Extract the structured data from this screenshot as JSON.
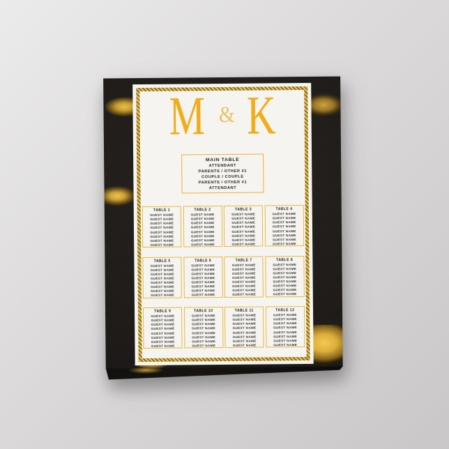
{
  "colors": {
    "bg1": "#ecebeb",
    "bg2": "#c9c7c8",
    "paper": "#f8f7f3",
    "canvas-black": "#1e1b19",
    "marble-gold": "#f0c24a",
    "mono-gold": "#f0ad19",
    "amp-gold": "#e9c369",
    "frame-gold": "#c9a227",
    "mainbox-border": "#f0b032",
    "card-border": "#e9b840",
    "text-dark": "#1c1c1c"
  },
  "seating_chart": {
    "monogram": {
      "left": "M",
      "ampersand": "&",
      "right": "K"
    },
    "main_table": {
      "title": "MAIN TABLE",
      "rows": [
        "ATTENDANT",
        "PARENTS / OTHER #1",
        "COUPLE / COUPLE",
        "PARENTS / OTHER #1",
        "ATTENDANT"
      ]
    },
    "tables": [
      {
        "label": "TABLE 1",
        "guests": [
          "GUEST NAME",
          "GUEST NAME",
          "GUEST NAME",
          "GUEST NAME",
          "GUEST NAME",
          "GUEST NAME",
          "GUEST NAME",
          "GUEST NAME"
        ]
      },
      {
        "label": "TABLE 2",
        "guests": [
          "GUEST NAME",
          "GUEST NAME",
          "GUEST NAME",
          "GUEST NAME",
          "GUEST NAME",
          "GUEST NAME",
          "GUEST NAME",
          "GUEST NAME"
        ]
      },
      {
        "label": "TABLE 3",
        "guests": [
          "GUEST NAME",
          "GUEST NAME",
          "GUEST NAME",
          "GUEST NAME",
          "GUEST NAME",
          "GUEST NAME",
          "GUEST NAME",
          "GUEST NAME"
        ]
      },
      {
        "label": "TABLE 4",
        "guests": [
          "GUEST NAME",
          "GUEST NAME",
          "GUEST NAME",
          "GUEST NAME",
          "GUEST NAME",
          "GUEST NAME",
          "GUEST NAME",
          "GUEST NAME"
        ]
      },
      {
        "label": "TABLE 5",
        "guests": [
          "GUEST NAME",
          "GUEST NAME",
          "GUEST NAME",
          "GUEST NAME",
          "GUEST NAME",
          "GUEST NAME",
          "GUEST NAME",
          "GUEST NAME"
        ]
      },
      {
        "label": "TABLE 6",
        "guests": [
          "GUEST NAME",
          "GUEST NAME",
          "GUEST NAME",
          "GUEST NAME",
          "GUEST NAME",
          "GUEST NAME",
          "GUEST NAME",
          "GUEST NAME"
        ]
      },
      {
        "label": "TABLE 7",
        "guests": [
          "GUEST NAME",
          "GUEST NAME",
          "GUEST NAME",
          "GUEST NAME",
          "GUEST NAME",
          "GUEST NAME",
          "GUEST NAME",
          "GUEST NAME"
        ]
      },
      {
        "label": "TABLE 8",
        "guests": [
          "GUEST NAME",
          "GUEST NAME",
          "GUEST NAME",
          "GUEST NAME",
          "GUEST NAME",
          "GUEST NAME",
          "GUEST NAME",
          "GUEST NAME"
        ]
      },
      {
        "label": "TABLE 9",
        "guests": [
          "GUEST NAME",
          "GUEST NAME",
          "GUEST NAME",
          "GUEST NAME",
          "GUEST NAME",
          "GUEST NAME",
          "GUEST NAME",
          "GUEST NAME"
        ]
      },
      {
        "label": "TABLE 10",
        "guests": [
          "GUEST NAME",
          "GUEST NAME",
          "GUEST NAME",
          "GUEST NAME",
          "GUEST NAME",
          "GUEST NAME",
          "GUEST NAME",
          "GUEST NAME"
        ]
      },
      {
        "label": "TABLE 11",
        "guests": [
          "GUEST NAME",
          "GUEST NAME",
          "GUEST NAME",
          "GUEST NAME",
          "GUEST NAME",
          "GUEST NAME",
          "GUEST NAME",
          "GUEST NAME"
        ]
      },
      {
        "label": "TABLE 12",
        "guests": [
          "GUEST NAME",
          "GUEST NAME",
          "GUEST NAME",
          "GUEST NAME",
          "GUEST NAME",
          "GUEST NAME",
          "GUEST NAME",
          "GUEST NAME"
        ]
      }
    ]
  }
}
